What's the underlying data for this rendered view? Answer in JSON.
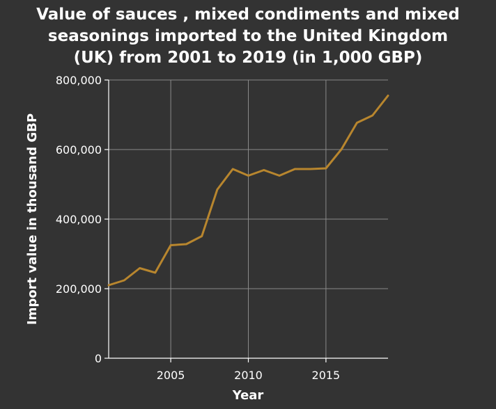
{
  "chart_data": {
    "type": "line",
    "title_lines": [
      "Value of sauces , mixed condiments and mixed",
      "seasonings imported to the United Kingdom",
      "(UK) from 2001 to 2019 (in 1,000 GBP)"
    ],
    "xlabel": "Year",
    "ylabel": "Import value in thousand GBP",
    "xlim": [
      2001,
      2019
    ],
    "ylim": [
      0,
      800000
    ],
    "x_ticks": [
      2005,
      2010,
      2015
    ],
    "y_ticks": [
      0,
      200000,
      400000,
      600000,
      800000
    ],
    "y_tick_labels": [
      "0",
      "200,000",
      "400,000",
      "600,000",
      "800,000"
    ],
    "grid": true,
    "line_color": "#b8862e",
    "background_color": "#333333",
    "series": [
      {
        "x": [
          2001,
          2002,
          2003,
          2004,
          2005,
          2006,
          2007,
          2008,
          2009,
          2010,
          2011,
          2012,
          2013,
          2014,
          2015,
          2016,
          2017,
          2018,
          2019
        ],
        "values": [
          210000,
          224000,
          259000,
          246000,
          325000,
          328000,
          351000,
          485000,
          544000,
          525000,
          541000,
          525000,
          544000,
          544000,
          546000,
          601000,
          677000,
          698000,
          755000
        ]
      }
    ]
  }
}
